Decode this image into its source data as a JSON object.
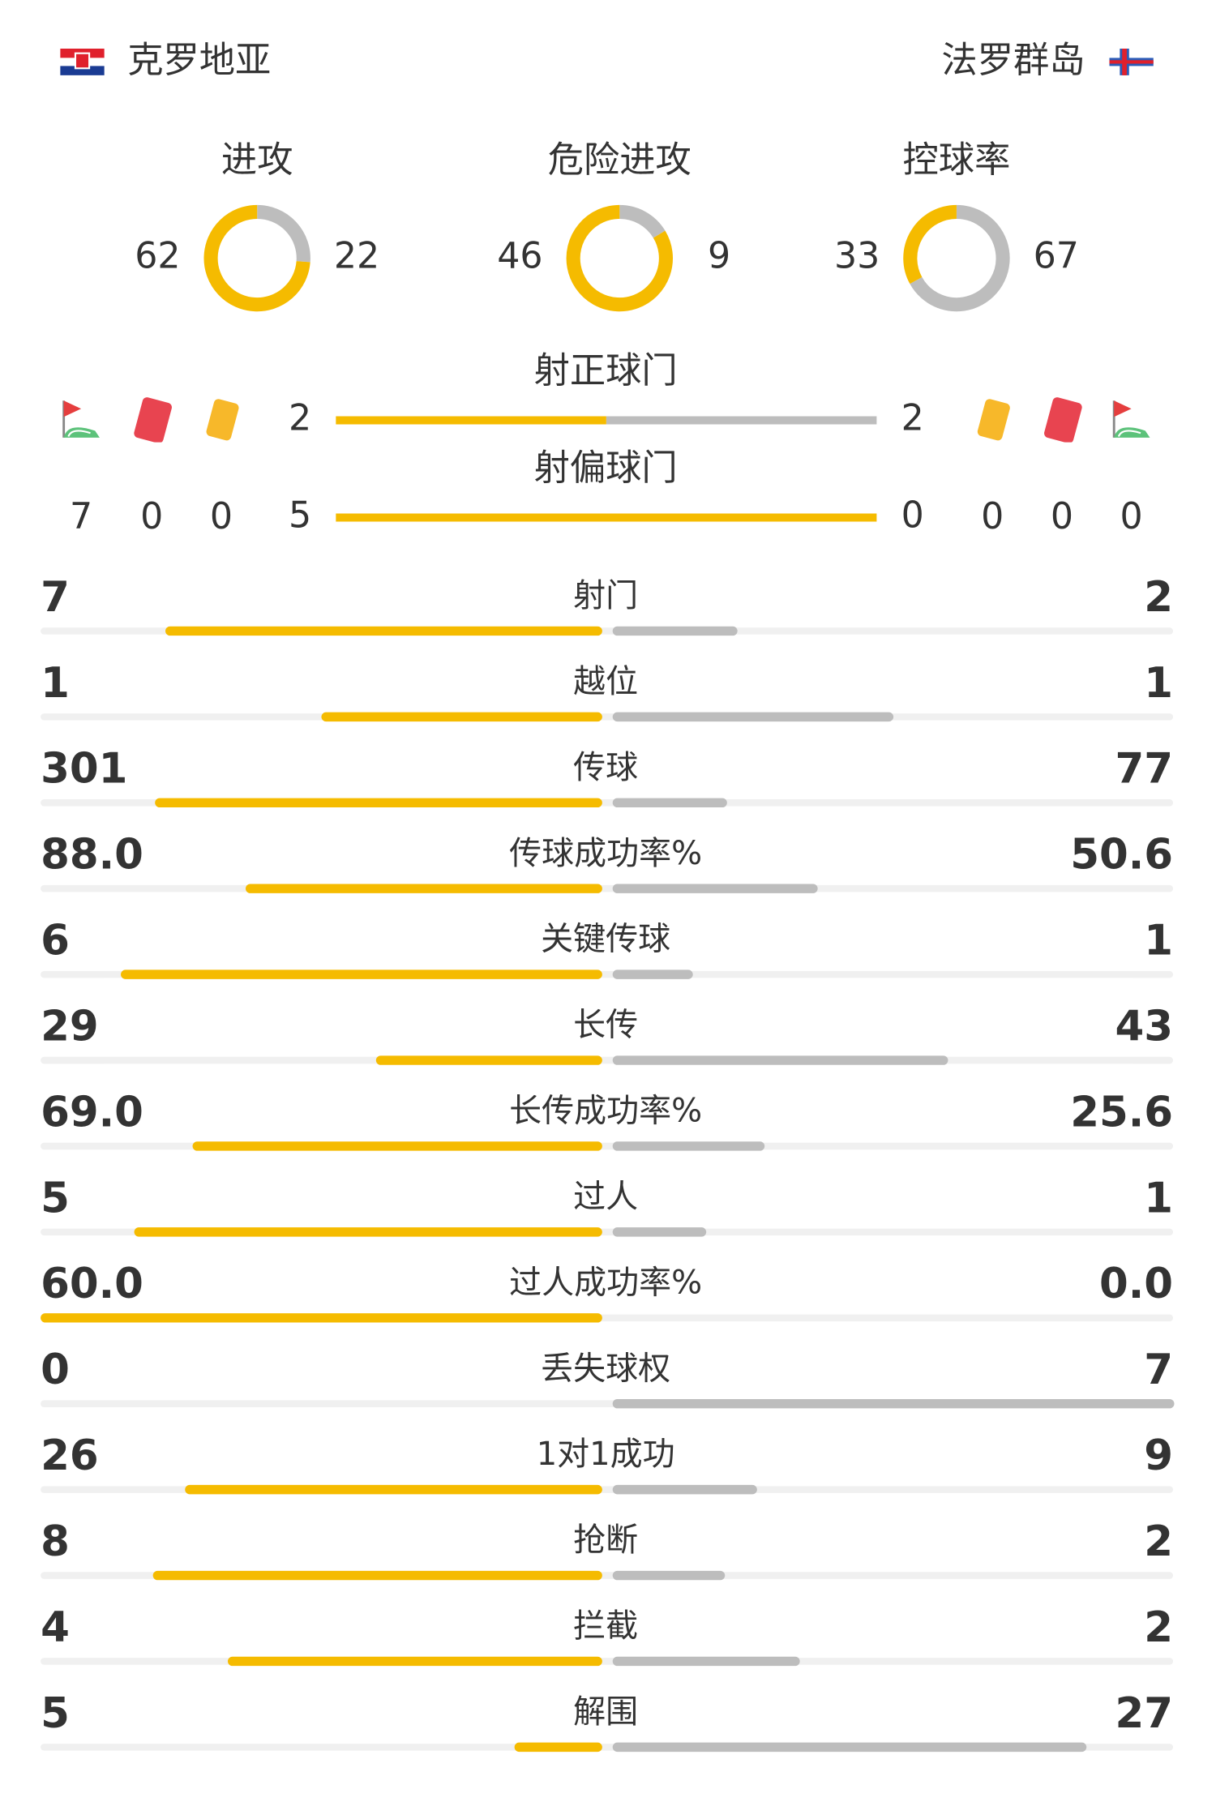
{
  "header": {
    "home": "克罗地亚",
    "away": "法罗群岛"
  },
  "rates": [
    {
      "label": "进攻",
      "values": [
        62,
        22
      ]
    },
    {
      "label": "危险进攻",
      "values": [
        46,
        9
      ]
    },
    {
      "label": "控球率",
      "values": [
        33,
        67
      ]
    }
  ],
  "shots": [
    {
      "label": "射正球门",
      "values": [
        2,
        2
      ]
    },
    {
      "label": "射偏球门",
      "values": [
        5,
        0
      ]
    }
  ],
  "events": {
    "home": {
      "corners": 7,
      "red_cards": 0,
      "yellow_cards": 0
    },
    "away": {
      "yellow_cards": 0,
      "red_cards": 0,
      "corners": 0
    }
  },
  "stats": [
    {
      "label": "射门",
      "values": [
        7,
        2
      ]
    },
    {
      "label": "越位",
      "values": [
        1,
        1
      ]
    },
    {
      "label": "传球",
      "values": [
        301,
        77
      ]
    },
    {
      "label": "传球成功率%",
      "values": [
        88.0,
        50.6
      ],
      "value_labels": [
        "88.0",
        "50.6"
      ]
    },
    {
      "label": "关键传球",
      "values": [
        6,
        1
      ]
    },
    {
      "label": "长传",
      "values": [
        29,
        43
      ]
    },
    {
      "label": "长传成功率%",
      "values": [
        69.0,
        25.6
      ],
      "value_labels": [
        "69.0",
        "25.6"
      ]
    },
    {
      "label": "过人",
      "values": [
        5,
        1
      ]
    },
    {
      "label": "过人成功率%",
      "values": [
        60.0,
        0.0
      ],
      "value_labels": [
        "60.0",
        "0.0"
      ]
    },
    {
      "label": "丢失球权",
      "values": [
        0,
        7
      ]
    },
    {
      "label": "1对1成功",
      "values": [
        26,
        9
      ]
    },
    {
      "label": "抢断",
      "values": [
        8,
        2
      ]
    },
    {
      "label": "拦截",
      "values": [
        4,
        2
      ]
    },
    {
      "label": "解围",
      "values": [
        5,
        27
      ]
    }
  ]
}
